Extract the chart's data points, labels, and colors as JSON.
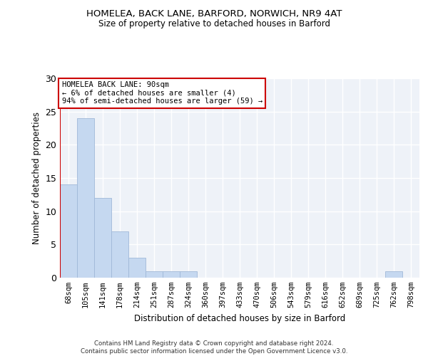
{
  "title1": "HOMELEA, BACK LANE, BARFORD, NORWICH, NR9 4AT",
  "title2": "Size of property relative to detached houses in Barford",
  "xlabel": "Distribution of detached houses by size in Barford",
  "ylabel": "Number of detached properties",
  "bins": [
    "68sqm",
    "105sqm",
    "141sqm",
    "178sqm",
    "214sqm",
    "251sqm",
    "287sqm",
    "324sqm",
    "360sqm",
    "397sqm",
    "433sqm",
    "470sqm",
    "506sqm",
    "543sqm",
    "579sqm",
    "616sqm",
    "652sqm",
    "689sqm",
    "725sqm",
    "762sqm",
    "798sqm"
  ],
  "values": [
    14,
    24,
    12,
    7,
    3,
    1,
    1,
    1,
    0,
    0,
    0,
    0,
    0,
    0,
    0,
    0,
    0,
    0,
    0,
    1,
    0
  ],
  "bar_color": "#c5d8f0",
  "bar_edge_color": "#a0b8d8",
  "vline_color": "#cc0000",
  "annotation_text": "HOMELEA BACK LANE: 90sqm\n← 6% of detached houses are smaller (4)\n94% of semi-detached houses are larger (59) →",
  "annotation_box_color": "#cc0000",
  "ylim": [
    0,
    30
  ],
  "yticks": [
    0,
    5,
    10,
    15,
    20,
    25,
    30
  ],
  "background_color": "#eef2f8",
  "footer": "Contains HM Land Registry data © Crown copyright and database right 2024.\nContains public sector information licensed under the Open Government Licence v3.0."
}
